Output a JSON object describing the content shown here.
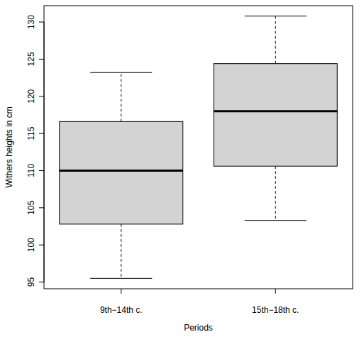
{
  "chart_data": {
    "type": "boxplot",
    "x_label": "Periods",
    "y_label": "Withers heights in cm",
    "categories": [
      "9th−14th c.",
      "15th−18th c."
    ],
    "low": [
      95.5,
      103.3
    ],
    "q1": [
      102.8,
      110.6
    ],
    "median": [
      110,
      118
    ],
    "q3": [
      116.6,
      124.4
    ],
    "high": [
      123.2,
      130.8
    ],
    "color": "#d3d3d3",
    "ylim": [
      94.1,
      132.2
    ],
    "yticks": [
      95,
      100,
      105,
      110,
      115,
      120,
      125,
      130
    ],
    "grid": false
  }
}
